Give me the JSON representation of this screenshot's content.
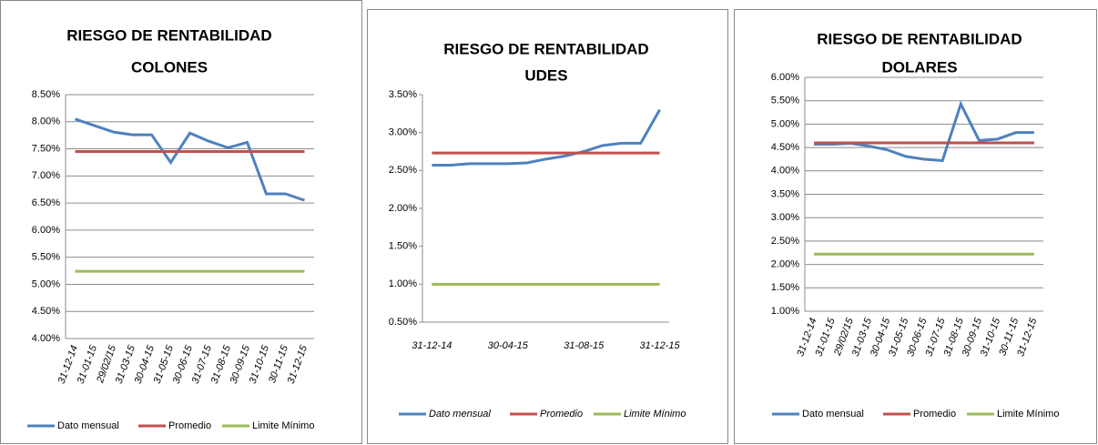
{
  "chart_data": [
    {
      "type": "line",
      "title": "RIESGO DE RENTABILIDAD",
      "subtitle": "COLONES",
      "categories": [
        "31-12-14",
        "31-01-15",
        "29/02/15",
        "31-03-15",
        "30-04-15",
        "31-05-15",
        "30-06-15",
        "31-07-15",
        "31-08-15",
        "30-09-15",
        "31-10-15",
        "30-11-15",
        "31-12-15"
      ],
      "series": [
        {
          "name": "Dato mensual",
          "color": "#4f81bd",
          "values": [
            8.05,
            7.93,
            7.81,
            7.76,
            7.76,
            7.25,
            7.79,
            7.64,
            7.52,
            7.62,
            6.67,
            6.67,
            6.55
          ]
        },
        {
          "name": "Promedio",
          "color": "#c0504d",
          "values": [
            7.45,
            7.45,
            7.45,
            7.45,
            7.45,
            7.45,
            7.45,
            7.45,
            7.45,
            7.45,
            7.45,
            7.45,
            7.45
          ]
        },
        {
          "name": "Limite Mínimo",
          "color": "#9bbb59",
          "values": [
            5.24,
            5.24,
            5.24,
            5.24,
            5.24,
            5.24,
            5.24,
            5.24,
            5.24,
            5.24,
            5.24,
            5.24,
            5.24
          ]
        }
      ],
      "ylim": [
        4,
        8.5
      ],
      "yticks": [
        {
          "value": 4,
          "label": "4.00%"
        },
        {
          "value": 4.5,
          "label": "4.50%"
        },
        {
          "value": 5,
          "label": "5.00%"
        },
        {
          "value": 5.5,
          "label": "5.50%"
        },
        {
          "value": 6,
          "label": "6.00%"
        },
        {
          "value": 6.5,
          "label": "6.50%"
        },
        {
          "value": 7,
          "label": "7.00%"
        },
        {
          "value": 7.5,
          "label": "7.50%"
        },
        {
          "value": 8,
          "label": "8.00%"
        },
        {
          "value": 8.5,
          "label": "8.50%"
        }
      ],
      "grid": true,
      "legend": "bottom"
    },
    {
      "type": "line",
      "title": "RIESGO DE RENTABILIDAD",
      "subtitle": "UDES",
      "categories": [
        "31-12-14",
        null,
        null,
        null,
        "30-04-15",
        null,
        null,
        null,
        "31-08-15",
        null,
        null,
        null,
        "31-12-15"
      ],
      "series": [
        {
          "name": "Dato mensual",
          "color": "#4f81bd",
          "values": [
            2.57,
            2.57,
            2.59,
            2.59,
            2.59,
            2.6,
            2.65,
            2.69,
            2.75,
            2.83,
            2.86,
            2.86,
            3.3
          ]
        },
        {
          "name": "Promedio",
          "color": "#c0504d",
          "values": [
            2.73,
            2.73,
            2.73,
            2.73,
            2.73,
            2.73,
            2.73,
            2.73,
            2.73,
            2.73,
            2.73,
            2.73,
            2.73
          ]
        },
        {
          "name": "Limite Mínimo",
          "color": "#9bbb59",
          "values": [
            1,
            1,
            1,
            1,
            1,
            1,
            1,
            1,
            1,
            1,
            1,
            1,
            1
          ]
        }
      ],
      "ylim": [
        0.5,
        3.5
      ],
      "yticks": [
        {
          "value": 0.5,
          "label": "0.50%"
        },
        {
          "value": 1,
          "label": "1.00%"
        },
        {
          "value": 1.5,
          "label": "1.50%"
        },
        {
          "value": 2,
          "label": "2.00%"
        },
        {
          "value": 2.5,
          "label": "2.50%"
        },
        {
          "value": 3,
          "label": "3.00%"
        },
        {
          "value": 3.5,
          "label": "3.50%"
        }
      ],
      "grid": false,
      "legend": "bottom"
    },
    {
      "type": "line",
      "title": "RIESGO DE RENTABILIDAD",
      "subtitle": "DOLARES",
      "categories": [
        "31-12-14",
        "31-01-15",
        "29/02/15",
        "31-03-15",
        "30-04-15",
        "31-05-15",
        "30-06-15",
        "31-07-15",
        "31-08-15",
        "30-09-15",
        "31-10-15",
        "30-11-15",
        "31-12-15"
      ],
      "series": [
        {
          "name": "Dato mensual",
          "color": "#4f81bd",
          "values": [
            4.57,
            4.57,
            4.59,
            4.53,
            4.45,
            4.31,
            4.25,
            4.22,
            5.43,
            4.65,
            4.68,
            4.82,
            4.82
          ]
        },
        {
          "name": "Promedio",
          "color": "#c0504d",
          "values": [
            4.6,
            4.6,
            4.6,
            4.6,
            4.6,
            4.6,
            4.6,
            4.6,
            4.6,
            4.6,
            4.6,
            4.6,
            4.6
          ]
        },
        {
          "name": "Limite Mínimo",
          "color": "#9bbb59",
          "values": [
            2.22,
            2.22,
            2.22,
            2.22,
            2.22,
            2.22,
            2.22,
            2.22,
            2.22,
            2.22,
            2.22,
            2.22,
            2.22
          ]
        }
      ],
      "ylim": [
        1,
        6
      ],
      "yticks": [
        {
          "value": 1,
          "label": "1.00%"
        },
        {
          "value": 1.5,
          "label": "1.50%"
        },
        {
          "value": 2,
          "label": "2.00%"
        },
        {
          "value": 2.5,
          "label": "2.50%"
        },
        {
          "value": 3,
          "label": "3.00%"
        },
        {
          "value": 3.5,
          "label": "3.50%"
        },
        {
          "value": 4,
          "label": "4.00%"
        },
        {
          "value": 4.5,
          "label": "4.50%"
        },
        {
          "value": 5,
          "label": "5.00%"
        },
        {
          "value": 5.5,
          "label": "5.50%"
        },
        {
          "value": 6,
          "label": "6.00%"
        }
      ],
      "grid": true,
      "legend": "bottom"
    }
  ]
}
